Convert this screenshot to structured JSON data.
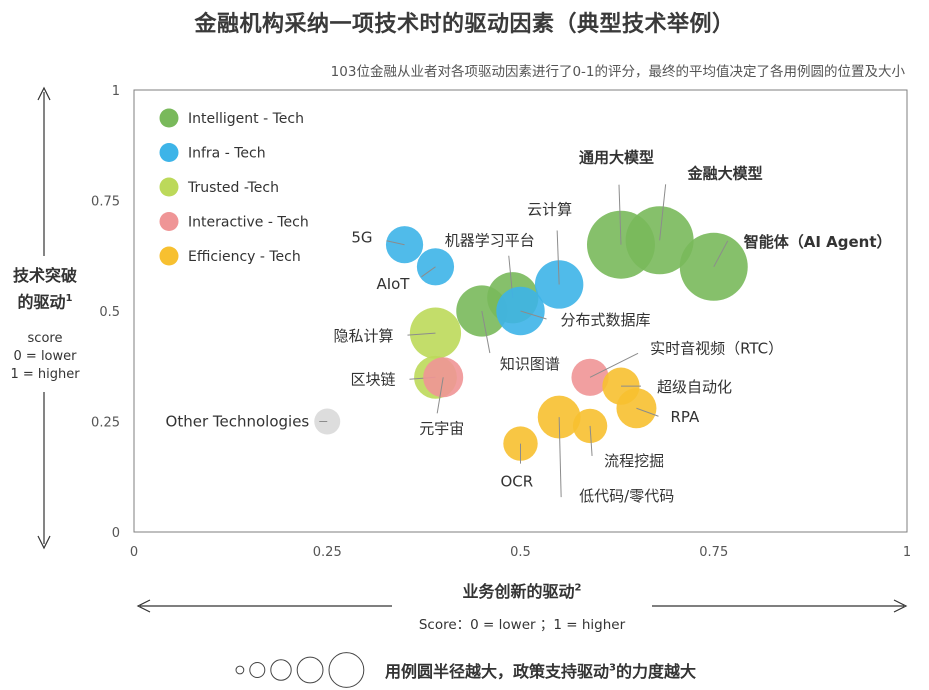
{
  "title": "金融机构采纳一项技术时的驱动因素（典型技术举例）",
  "subtitle": "103位金融从业者对各项驱动因素进行了0-1的评分，最终的平均值决定了各用例圆的位置及大小",
  "y_axis": {
    "label_line1": "技术突破",
    "label_line2": "的驱动",
    "label_sup": "1",
    "sub_line1": "score",
    "sub_line2": "0 = lower",
    "sub_line3": "1 = higher"
  },
  "x_axis": {
    "label": "业务创新的驱动",
    "label_sup": "2",
    "sub": "Score：0 = lower ；1 = higher"
  },
  "footer": {
    "text_before": "用例圆半径越大，政策支持驱动",
    "sup": "3",
    "text_after": "的力度越大"
  },
  "colors": {
    "intelligent": "#79b95b",
    "infra": "#3db4e8",
    "trusted": "#bcd95a",
    "interactive": "#ef9596",
    "efficiency": "#f7c030",
    "other": "#d9d9d9"
  },
  "chart_data": {
    "type": "scatter",
    "xlim": [
      0,
      1
    ],
    "ylim": [
      0,
      1
    ],
    "x_ticks": [
      "0",
      "0.25",
      "0.5",
      "0.75",
      "1"
    ],
    "y_ticks": [
      "0",
      "0.25",
      "0.5",
      "0.75",
      "1"
    ],
    "legend": {
      "placement": "top-left",
      "entries": [
        {
          "key": "intelligent",
          "name": "Intelligent - Tech"
        },
        {
          "key": "infra",
          "name": "Infra - Tech"
        },
        {
          "key": "trusted",
          "name": "Trusted -Tech"
        },
        {
          "key": "interactive",
          "name": "Interactive - Tech"
        },
        {
          "key": "efficiency",
          "name": "Efficiency - Tech"
        }
      ]
    },
    "points": [
      {
        "label": "通用大模型",
        "category": "intelligent",
        "x": 0.63,
        "y": 0.65,
        "size": 1.0,
        "bold": true
      },
      {
        "label": "金融大模型",
        "category": "intelligent",
        "x": 0.68,
        "y": 0.66,
        "size": 1.0,
        "bold": true
      },
      {
        "label": "智能体（AI Agent）",
        "category": "intelligent",
        "x": 0.75,
        "y": 0.6,
        "size": 1.0,
        "bold": true
      },
      {
        "label": "机器学习平台",
        "category": "intelligent",
        "x": 0.49,
        "y": 0.53,
        "size": 0.7
      },
      {
        "label": "知识图谱",
        "category": "intelligent",
        "x": 0.45,
        "y": 0.5,
        "size": 0.7
      },
      {
        "label": "5G",
        "category": "infra",
        "x": 0.35,
        "y": 0.65,
        "size": 0.45
      },
      {
        "label": "AIoT",
        "category": "infra",
        "x": 0.39,
        "y": 0.6,
        "size": 0.45
      },
      {
        "label": "云计算",
        "category": "infra",
        "x": 0.55,
        "y": 0.56,
        "size": 0.65
      },
      {
        "label": "分布式数据库",
        "category": "infra",
        "x": 0.5,
        "y": 0.5,
        "size": 0.65
      },
      {
        "label": "隐私计算",
        "category": "trusted",
        "x": 0.39,
        "y": 0.45,
        "size": 0.7
      },
      {
        "label": "区块链",
        "category": "trusted",
        "x": 0.39,
        "y": 0.35,
        "size": 0.55
      },
      {
        "label": "元宇宙",
        "category": "interactive",
        "x": 0.4,
        "y": 0.35,
        "size": 0.5
      },
      {
        "label": "实时音视频（RTC）",
        "category": "interactive",
        "x": 0.59,
        "y": 0.35,
        "size": 0.45
      },
      {
        "label": "超级自动化",
        "category": "efficiency",
        "x": 0.63,
        "y": 0.33,
        "size": 0.45
      },
      {
        "label": "RPA",
        "category": "efficiency",
        "x": 0.65,
        "y": 0.28,
        "size": 0.5
      },
      {
        "label": "流程挖掘",
        "category": "efficiency",
        "x": 0.59,
        "y": 0.24,
        "size": 0.4
      },
      {
        "label": "低代码/零代码",
        "category": "efficiency",
        "x": 0.55,
        "y": 0.26,
        "size": 0.55
      },
      {
        "label": "OCR",
        "category": "efficiency",
        "x": 0.5,
        "y": 0.2,
        "size": 0.4
      },
      {
        "label": "Other Technologies",
        "category": "other",
        "x": 0.25,
        "y": 0.25,
        "size": 0.25
      }
    ],
    "size_legend": [
      0.05,
      0.25,
      0.4,
      0.55,
      0.8
    ]
  }
}
